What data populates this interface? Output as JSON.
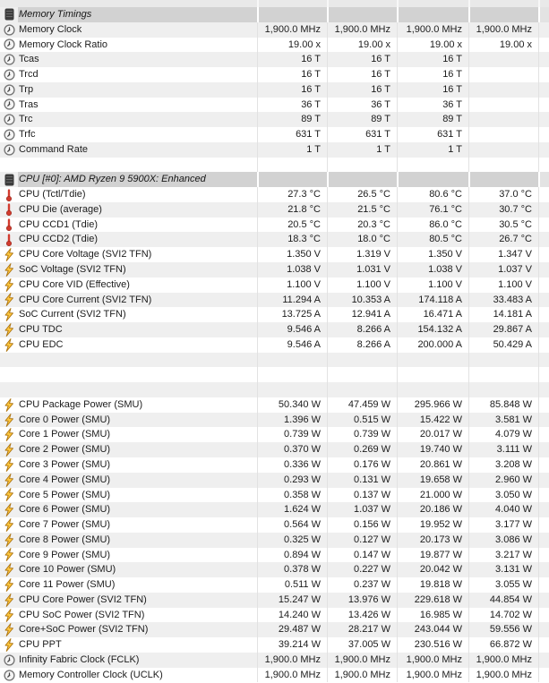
{
  "colors": {
    "header_bg": "#d2d2d2",
    "row_alt": "#efefef",
    "row_bg": "#ffffff",
    "separator": "#e2e2e2",
    "strip_bg": "#e9e9e9",
    "text": "#1c1c1c",
    "thermo_red": "#d23b2e",
    "thermo_dark": "#8f1f15",
    "bolt_yellow": "#fdc63d",
    "bolt_outline": "#ad7410",
    "clock_ring": "#787878",
    "clock_face": "#f4f4f4",
    "clock_hand": "#3f3f3f",
    "chip_dark": "#3d3d3d",
    "chip_stripe": "#6a6a6a"
  },
  "table": {
    "rows": [
      {
        "type": "header",
        "icon": "chip",
        "label": "Memory Timings",
        "values": [
          "",
          "",
          "",
          ""
        ]
      },
      {
        "type": "data",
        "icon": "clock",
        "label": "Memory Clock",
        "values": [
          "1,900.0 MHz",
          "1,900.0 MHz",
          "1,900.0 MHz",
          "1,900.0 MHz"
        ]
      },
      {
        "type": "data",
        "icon": "clock",
        "label": "Memory Clock Ratio",
        "values": [
          "19.00 x",
          "19.00 x",
          "19.00 x",
          "19.00 x"
        ]
      },
      {
        "type": "data",
        "icon": "clock",
        "label": "Tcas",
        "values": [
          "16 T",
          "16 T",
          "16 T",
          ""
        ]
      },
      {
        "type": "data",
        "icon": "clock",
        "label": "Trcd",
        "values": [
          "16 T",
          "16 T",
          "16 T",
          ""
        ]
      },
      {
        "type": "data",
        "icon": "clock",
        "label": "Trp",
        "values": [
          "16 T",
          "16 T",
          "16 T",
          ""
        ]
      },
      {
        "type": "data",
        "icon": "clock",
        "label": "Tras",
        "values": [
          "36 T",
          "36 T",
          "36 T",
          ""
        ]
      },
      {
        "type": "data",
        "icon": "clock",
        "label": "Trc",
        "values": [
          "89 T",
          "89 T",
          "89 T",
          ""
        ]
      },
      {
        "type": "data",
        "icon": "clock",
        "label": "Trfc",
        "values": [
          "631 T",
          "631 T",
          "631 T",
          ""
        ]
      },
      {
        "type": "data",
        "icon": "clock",
        "label": "Command Rate",
        "values": [
          "1 T",
          "1 T",
          "1 T",
          ""
        ]
      },
      {
        "type": "empty",
        "icon": null,
        "label": "",
        "values": [
          "",
          "",
          "",
          ""
        ]
      },
      {
        "type": "header",
        "icon": "chip",
        "label": "CPU [#0]: AMD Ryzen 9 5900X: Enhanced",
        "values": [
          "",
          "",
          "",
          ""
        ]
      },
      {
        "type": "data",
        "icon": "thermo",
        "label": "CPU (Tctl/Tdie)",
        "values": [
          "27.3 °C",
          "26.5 °C",
          "80.6 °C",
          "37.0 °C"
        ]
      },
      {
        "type": "data",
        "icon": "thermo",
        "label": "CPU Die (average)",
        "values": [
          "21.8 °C",
          "21.5 °C",
          "76.1 °C",
          "30.7 °C"
        ]
      },
      {
        "type": "data",
        "icon": "thermo",
        "label": "CPU CCD1 (Tdie)",
        "values": [
          "20.5 °C",
          "20.3 °C",
          "86.0 °C",
          "30.5 °C"
        ]
      },
      {
        "type": "data",
        "icon": "thermo",
        "label": "CPU CCD2 (Tdie)",
        "values": [
          "18.3 °C",
          "18.0 °C",
          "80.5 °C",
          "26.7 °C"
        ]
      },
      {
        "type": "data",
        "icon": "bolt",
        "label": "CPU Core Voltage (SVI2 TFN)",
        "values": [
          "1.350 V",
          "1.319 V",
          "1.350 V",
          "1.347 V"
        ]
      },
      {
        "type": "data",
        "icon": "bolt",
        "label": "SoC Voltage (SVI2 TFN)",
        "values": [
          "1.038 V",
          "1.031 V",
          "1.038 V",
          "1.037 V"
        ]
      },
      {
        "type": "data",
        "icon": "bolt",
        "label": "CPU Core VID (Effective)",
        "values": [
          "1.100 V",
          "1.100 V",
          "1.100 V",
          "1.100 V"
        ]
      },
      {
        "type": "data",
        "icon": "bolt",
        "label": "CPU Core Current (SVI2 TFN)",
        "values": [
          "11.294 A",
          "10.353 A",
          "174.118 A",
          "33.483 A"
        ]
      },
      {
        "type": "data",
        "icon": "bolt",
        "label": "SoC Current (SVI2 TFN)",
        "values": [
          "13.725 A",
          "12.941 A",
          "16.471 A",
          "14.181 A"
        ]
      },
      {
        "type": "data",
        "icon": "bolt",
        "label": "CPU TDC",
        "values": [
          "9.546 A",
          "8.266 A",
          "154.132 A",
          "29.867 A"
        ]
      },
      {
        "type": "data",
        "icon": "bolt",
        "label": "CPU EDC",
        "values": [
          "9.546 A",
          "8.266 A",
          "200.000 A",
          "50.429 A"
        ]
      },
      {
        "type": "empty",
        "icon": null,
        "label": "",
        "values": [
          "",
          "",
          "",
          ""
        ]
      },
      {
        "type": "empty",
        "icon": null,
        "label": "",
        "values": [
          "",
          "",
          "",
          ""
        ]
      },
      {
        "type": "empty",
        "icon": null,
        "label": "",
        "values": [
          "",
          "",
          "",
          ""
        ]
      },
      {
        "type": "data",
        "icon": "bolt",
        "label": "CPU Package Power (SMU)",
        "values": [
          "50.340 W",
          "47.459 W",
          "295.966 W",
          "85.848 W"
        ]
      },
      {
        "type": "data",
        "icon": "bolt",
        "label": "Core 0 Power (SMU)",
        "values": [
          "1.396 W",
          "0.515 W",
          "15.422 W",
          "3.581 W"
        ]
      },
      {
        "type": "data",
        "icon": "bolt",
        "label": "Core 1 Power (SMU)",
        "values": [
          "0.739 W",
          "0.739 W",
          "20.017 W",
          "4.079 W"
        ]
      },
      {
        "type": "data",
        "icon": "bolt",
        "label": "Core 2 Power (SMU)",
        "values": [
          "0.370 W",
          "0.269 W",
          "19.740 W",
          "3.111 W"
        ]
      },
      {
        "type": "data",
        "icon": "bolt",
        "label": "Core 3 Power (SMU)",
        "values": [
          "0.336 W",
          "0.176 W",
          "20.861 W",
          "3.208 W"
        ]
      },
      {
        "type": "data",
        "icon": "bolt",
        "label": "Core 4 Power (SMU)",
        "values": [
          "0.293 W",
          "0.131 W",
          "19.658 W",
          "2.960 W"
        ]
      },
      {
        "type": "data",
        "icon": "bolt",
        "label": "Core 5 Power (SMU)",
        "values": [
          "0.358 W",
          "0.137 W",
          "21.000 W",
          "3.050 W"
        ]
      },
      {
        "type": "data",
        "icon": "bolt",
        "label": "Core 6 Power (SMU)",
        "values": [
          "1.624 W",
          "1.037 W",
          "20.186 W",
          "4.040 W"
        ]
      },
      {
        "type": "data",
        "icon": "bolt",
        "label": "Core 7 Power (SMU)",
        "values": [
          "0.564 W",
          "0.156 W",
          "19.952 W",
          "3.177 W"
        ]
      },
      {
        "type": "data",
        "icon": "bolt",
        "label": "Core 8 Power (SMU)",
        "values": [
          "0.325 W",
          "0.127 W",
          "20.173 W",
          "3.086 W"
        ]
      },
      {
        "type": "data",
        "icon": "bolt",
        "label": "Core 9 Power (SMU)",
        "values": [
          "0.894 W",
          "0.147 W",
          "19.877 W",
          "3.217 W"
        ]
      },
      {
        "type": "data",
        "icon": "bolt",
        "label": "Core 10 Power (SMU)",
        "values": [
          "0.378 W",
          "0.227 W",
          "20.042 W",
          "3.131 W"
        ]
      },
      {
        "type": "data",
        "icon": "bolt",
        "label": "Core 11 Power (SMU)",
        "values": [
          "0.511 W",
          "0.237 W",
          "19.818 W",
          "3.055 W"
        ]
      },
      {
        "type": "data",
        "icon": "bolt",
        "label": "CPU Core Power (SVI2 TFN)",
        "values": [
          "15.247 W",
          "13.976 W",
          "229.618 W",
          "44.854 W"
        ]
      },
      {
        "type": "data",
        "icon": "bolt",
        "label": "CPU SoC Power (SVI2 TFN)",
        "values": [
          "14.240 W",
          "13.426 W",
          "16.985 W",
          "14.702 W"
        ]
      },
      {
        "type": "data",
        "icon": "bolt",
        "label": "Core+SoC Power (SVI2 TFN)",
        "values": [
          "29.487 W",
          "28.217 W",
          "243.044 W",
          "59.556 W"
        ]
      },
      {
        "type": "data",
        "icon": "bolt",
        "label": "CPU PPT",
        "values": [
          "39.214 W",
          "37.005 W",
          "230.516 W",
          "66.872 W"
        ]
      },
      {
        "type": "data",
        "icon": "clock",
        "label": "Infinity Fabric Clock (FCLK)",
        "values": [
          "1,900.0 MHz",
          "1,900.0 MHz",
          "1,900.0 MHz",
          "1,900.0 MHz"
        ]
      },
      {
        "type": "data",
        "icon": "clock",
        "label": "Memory Controller Clock (UCLK)",
        "values": [
          "1,900.0 MHz",
          "1,900.0 MHz",
          "1,900.0 MHz",
          "1,900.0 MHz"
        ]
      }
    ]
  }
}
